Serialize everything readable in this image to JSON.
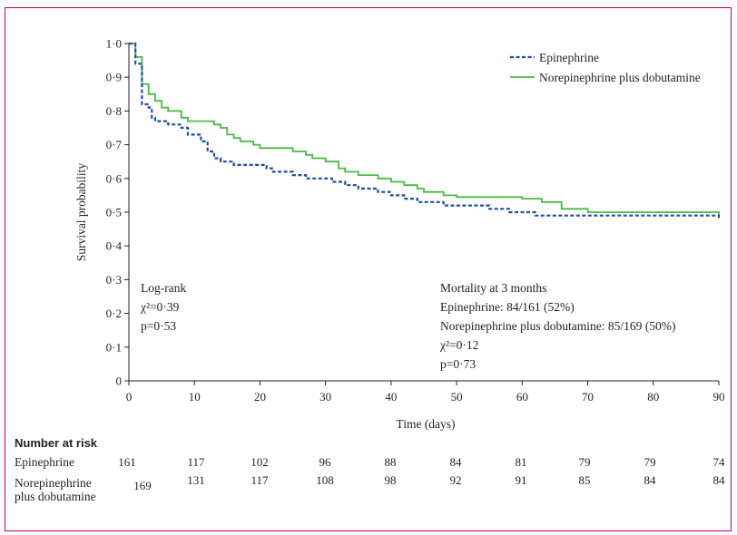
{
  "chart_data": {
    "type": "line",
    "xlabel": "Time (days)",
    "ylabel": "Survival probability",
    "xlim": [
      0,
      90
    ],
    "ylim": [
      0,
      1
    ],
    "x_ticks": [
      "0",
      "10",
      "20",
      "30",
      "40",
      "50",
      "60",
      "70",
      "80",
      "90"
    ],
    "y_ticks": [
      "0",
      "0·1",
      "0·2",
      "0·3",
      "0·4",
      "0·5",
      "0·6",
      "0·7",
      "0·8",
      "0·9",
      "1·0"
    ],
    "legend": {
      "placement": "top-right"
    },
    "series": [
      {
        "name": "Epinephrine",
        "color": "#1f4e9a",
        "style": "dashed",
        "points": [
          [
            0,
            1.0
          ],
          [
            1,
            0.94
          ],
          [
            2,
            0.82
          ],
          [
            3,
            0.81
          ],
          [
            3.5,
            0.78
          ],
          [
            4,
            0.77
          ],
          [
            6,
            0.76
          ],
          [
            8,
            0.75
          ],
          [
            9,
            0.73
          ],
          [
            11,
            0.71
          ],
          [
            12,
            0.68
          ],
          [
            13,
            0.66
          ],
          [
            14,
            0.65
          ],
          [
            16,
            0.64
          ],
          [
            21,
            0.63
          ],
          [
            22,
            0.62
          ],
          [
            25,
            0.61
          ],
          [
            27,
            0.6
          ],
          [
            31,
            0.59
          ],
          [
            33,
            0.58
          ],
          [
            35,
            0.57
          ],
          [
            38,
            0.56
          ],
          [
            40,
            0.55
          ],
          [
            42,
            0.54
          ],
          [
            44,
            0.53
          ],
          [
            48,
            0.52
          ],
          [
            55,
            0.51
          ],
          [
            58,
            0.5
          ],
          [
            62,
            0.49
          ],
          [
            88,
            0.49
          ],
          [
            90,
            0.48
          ]
        ]
      },
      {
        "name": "Norepinephrine plus dobutamine",
        "color": "#4cb848",
        "style": "solid",
        "points": [
          [
            0,
            1.0
          ],
          [
            1,
            0.96
          ],
          [
            2,
            0.88
          ],
          [
            3,
            0.85
          ],
          [
            4,
            0.83
          ],
          [
            5,
            0.81
          ],
          [
            6,
            0.8
          ],
          [
            8,
            0.78
          ],
          [
            9,
            0.77
          ],
          [
            13,
            0.76
          ],
          [
            14,
            0.75
          ],
          [
            15,
            0.73
          ],
          [
            16,
            0.72
          ],
          [
            17,
            0.71
          ],
          [
            19,
            0.7
          ],
          [
            20,
            0.69
          ],
          [
            25,
            0.68
          ],
          [
            27,
            0.67
          ],
          [
            28,
            0.66
          ],
          [
            30,
            0.65
          ],
          [
            32,
            0.63
          ],
          [
            33,
            0.62
          ],
          [
            35,
            0.61
          ],
          [
            38,
            0.6
          ],
          [
            40,
            0.59
          ],
          [
            42,
            0.58
          ],
          [
            44,
            0.57
          ],
          [
            45,
            0.56
          ],
          [
            48,
            0.55
          ],
          [
            50,
            0.545
          ],
          [
            60,
            0.54
          ],
          [
            63,
            0.53
          ],
          [
            66,
            0.51
          ],
          [
            70,
            0.5
          ],
          [
            90,
            0.49
          ]
        ]
      }
    ]
  },
  "annotations": {
    "logrank": [
      "Log-rank",
      "χ²=0·39",
      "p=0·53"
    ],
    "mortality": [
      "Mortality at 3 months",
      "Epinephrine: 84/161 (52%)",
      "Norepinephrine plus dobutamine: 85/169 (50%)",
      "χ²=0·12",
      "p=0·73"
    ]
  },
  "risk_table": {
    "title": "Number at risk",
    "rows": [
      {
        "label": "Epinephrine",
        "values": [
          "161",
          "117",
          "102",
          "96",
          "88",
          "84",
          "81",
          "79",
          "79",
          "74"
        ]
      },
      {
        "label_lines": [
          "Norepinephrine",
          "plus dobutamine"
        ],
        "values": [
          "169",
          "131",
          "117",
          "108",
          "98",
          "92",
          "91",
          "85",
          "84",
          "84"
        ]
      }
    ]
  }
}
